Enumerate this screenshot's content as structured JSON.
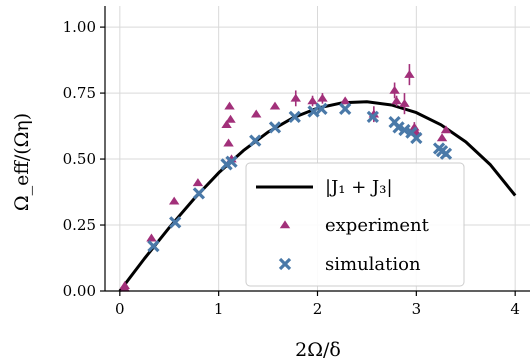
{
  "chart_data": {
    "type": "scatter",
    "xlabel": "2Ω/δ",
    "ylabel": "Ω_eff/(Ωη)",
    "xlim": [
      -0.15,
      4.15
    ],
    "ylim": [
      0.0,
      1.08
    ],
    "xticks": [
      0,
      1,
      2,
      3,
      4
    ],
    "xtick_labels": [
      "0",
      "1",
      "2",
      "3",
      "4"
    ],
    "yticks": [
      0.0,
      0.25,
      0.5,
      0.75,
      1.0
    ],
    "ytick_labels": [
      "0.00",
      "0.25",
      "0.50",
      "0.75",
      "1.00"
    ],
    "grid": true,
    "legend_position": "lower-center",
    "colors": {
      "theory": "#000000",
      "experiment": "#a2307a",
      "simulation": "#4a79a8"
    },
    "series": [
      {
        "name": "|J₁ + J₃|",
        "kind": "line",
        "x": [
          0.0,
          0.25,
          0.5,
          0.75,
          1.0,
          1.25,
          1.5,
          1.75,
          2.0,
          2.25,
          2.5,
          2.75,
          3.0,
          3.25,
          3.5,
          3.75,
          4.0
        ],
        "y": [
          0.0,
          0.123,
          0.24,
          0.349,
          0.448,
          0.532,
          0.602,
          0.656,
          0.693,
          0.713,
          0.717,
          0.705,
          0.676,
          0.63,
          0.565,
          0.478,
          0.362
        ]
      },
      {
        "name": "experiment",
        "kind": "marker",
        "marker": "triangle",
        "x": [
          0.05,
          0.05,
          0.32,
          0.55,
          0.79,
          1.08,
          1.1,
          1.11,
          1.12,
          1.13,
          1.38,
          1.57,
          1.78,
          1.95,
          2.05,
          2.28,
          2.57,
          2.78,
          2.8,
          2.88,
          2.93,
          2.98,
          3.0,
          3.26,
          3.3
        ],
        "y": [
          0.02,
          0.01,
          0.2,
          0.34,
          0.41,
          0.63,
          0.56,
          0.7,
          0.65,
          0.5,
          0.67,
          0.7,
          0.73,
          0.72,
          0.73,
          0.72,
          0.67,
          0.76,
          0.72,
          0.71,
          0.82,
          0.62,
          0.6,
          0.58,
          0.61
        ],
        "yerr": [
          0.0,
          0.0,
          0.0,
          0.0,
          0.0,
          0.0,
          0.0,
          0.0,
          0.0,
          0.0,
          0.0,
          0.0,
          0.03,
          0.02,
          0.02,
          0.0,
          0.03,
          0.03,
          0.02,
          0.04,
          0.04,
          0.02,
          0.0,
          0.0,
          0.0
        ]
      },
      {
        "name": "simulation",
        "kind": "marker",
        "marker": "x",
        "x": [
          0.34,
          0.56,
          0.8,
          1.08,
          1.13,
          1.37,
          1.57,
          1.77,
          1.96,
          2.04,
          2.28,
          2.56,
          2.78,
          2.82,
          2.88,
          2.95,
          3.0,
          3.23,
          3.26,
          3.3
        ],
        "y": [
          0.17,
          0.26,
          0.37,
          0.48,
          0.49,
          0.57,
          0.62,
          0.66,
          0.68,
          0.69,
          0.69,
          0.66,
          0.64,
          0.62,
          0.61,
          0.6,
          0.58,
          0.54,
          0.53,
          0.52
        ]
      }
    ]
  }
}
